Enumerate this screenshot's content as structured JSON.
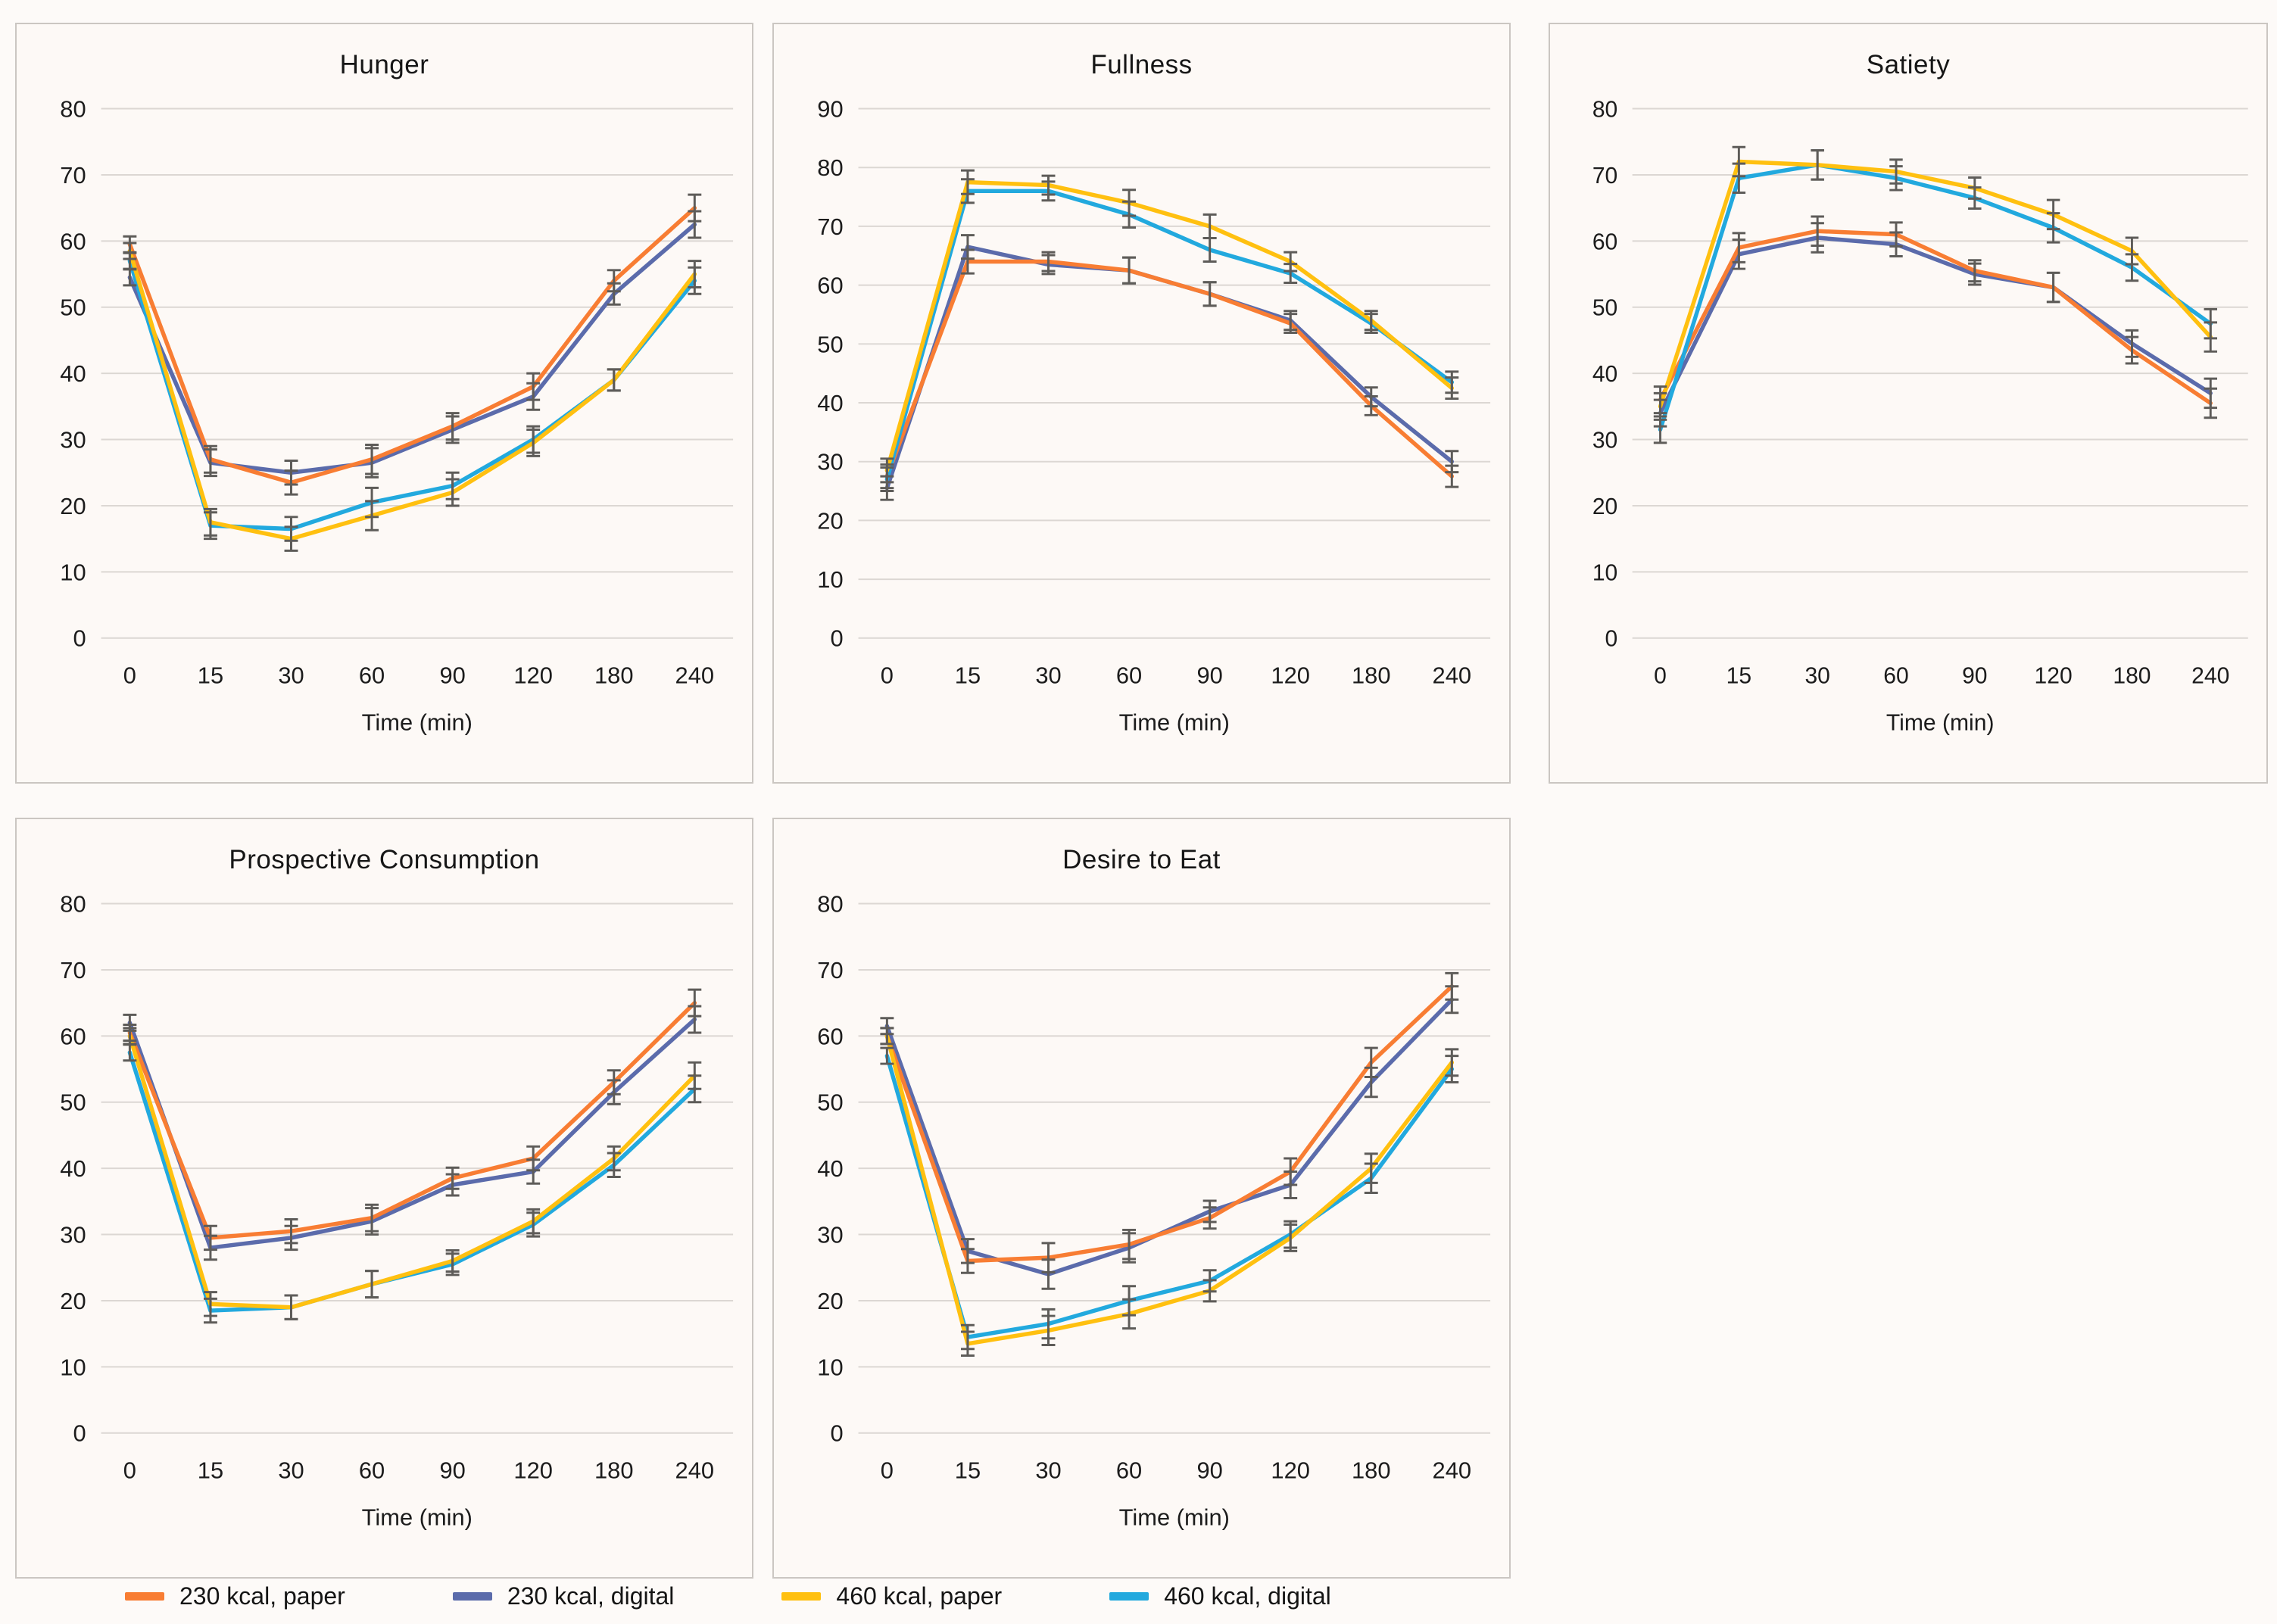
{
  "page": {
    "background": "#fdfaf8"
  },
  "colors": {
    "grid": "#dcd7d3",
    "error_bar": "#5e5c59",
    "panel_border": "#cbc6c2",
    "panel_bg": "#fdf9f6",
    "text": "#1c1c1c"
  },
  "series_colors": {
    "230 kcal, paper": "#F87D33",
    "230 kcal, digital": "#5B6BAB",
    "460 kcal, paper": "#FFC010",
    "460 kcal, digital": "#22A9DE"
  },
  "legend": {
    "position": "bottom",
    "items": [
      {
        "label": "230 kcal, paper",
        "color": "#F87D33"
      },
      {
        "label": "230 kcal, digital",
        "color": "#5B6BAB"
      },
      {
        "label": "460 kcal, paper",
        "color": "#FFC010"
      },
      {
        "label": "460 kcal, digital",
        "color": "#22A9DE"
      }
    ]
  },
  "chart_data": [
    {
      "type": "line",
      "title": "Hunger",
      "xlabel": "Time (min)",
      "ylim": [
        0,
        80
      ],
      "grid": true,
      "categories": [
        "0",
        "15",
        "30",
        "60",
        "90",
        "120",
        "180",
        "240"
      ],
      "errors": [
        1.2,
        2,
        1.8,
        2.2,
        2,
        2,
        1.6,
        2
      ],
      "series": [
        {
          "name": "230 kcal, digital",
          "values": [
            54.5,
            26.5,
            25,
            26.5,
            31.5,
            36.5,
            52,
            62.5
          ]
        },
        {
          "name": "230 kcal, paper",
          "values": [
            59.5,
            27,
            23.5,
            27,
            32,
            38,
            54,
            65
          ]
        },
        {
          "name": "460 kcal, digital",
          "values": [
            57,
            17,
            16.5,
            20.5,
            23,
            30,
            39,
            54
          ]
        },
        {
          "name": "460 kcal, paper",
          "values": [
            58.5,
            17.5,
            15,
            18.5,
            22,
            29.5,
            39,
            55
          ]
        }
      ]
    },
    {
      "type": "line",
      "title": "Fullness",
      "xlabel": "Time (min)",
      "ylim": [
        0,
        90
      ],
      "grid": true,
      "categories": [
        "0",
        "15",
        "30",
        "60",
        "90",
        "120",
        "180",
        "240"
      ],
      "errors": [
        2,
        2,
        1.6,
        2.2,
        2,
        1.6,
        1.6,
        1.8
      ],
      "series": [
        {
          "name": "230 kcal, digital",
          "values": [
            25.5,
            66.5,
            63.5,
            62.5,
            58.5,
            54,
            41,
            30
          ]
        },
        {
          "name": "230 kcal, paper",
          "values": [
            27.5,
            64,
            64,
            62.5,
            58.5,
            53.5,
            39.5,
            27.5
          ]
        },
        {
          "name": "460 kcal, digital",
          "values": [
            27,
            76,
            76,
            72,
            66,
            62,
            53.5,
            43.5
          ]
        },
        {
          "name": "460 kcal, paper",
          "values": [
            28.5,
            77.5,
            77,
            74,
            70,
            64,
            54,
            42.5
          ]
        }
      ]
    },
    {
      "type": "line",
      "title": "Satiety",
      "xlabel": "Time (min)",
      "ylim": [
        0,
        80
      ],
      "grid": true,
      "categories": [
        "0",
        "15",
        "30",
        "60",
        "90",
        "120",
        "180",
        "240"
      ],
      "errors": [
        2,
        2.2,
        2.2,
        1.8,
        1.6,
        2.2,
        2,
        2.2
      ],
      "series": [
        {
          "name": "230 kcal, digital",
          "values": [
            34,
            58,
            60.5,
            59.5,
            55,
            53,
            44.5,
            37
          ]
        },
        {
          "name": "230 kcal, paper",
          "values": [
            36,
            59,
            61.5,
            61,
            55.5,
            53,
            43.5,
            35.5
          ]
        },
        {
          "name": "460 kcal, digital",
          "values": [
            31.5,
            69.5,
            71.5,
            69.5,
            66.5,
            62,
            56,
            47.5
          ]
        },
        {
          "name": "460 kcal, paper",
          "values": [
            35,
            72,
            71.5,
            70.5,
            68,
            64,
            58.5,
            45.5
          ]
        }
      ]
    },
    {
      "type": "line",
      "title": "Prospective Consumption",
      "xlabel": "Time (min)",
      "ylim": [
        0,
        80
      ],
      "grid": true,
      "categories": [
        "0",
        "15",
        "30",
        "60",
        "90",
        "120",
        "180",
        "240"
      ],
      "errors": [
        1.2,
        1.8,
        1.8,
        2,
        1.6,
        1.8,
        1.8,
        2
      ],
      "series": [
        {
          "name": "230 kcal, digital",
          "values": [
            62,
            28,
            29.5,
            32,
            37.5,
            39.5,
            51.5,
            62.5
          ]
        },
        {
          "name": "230 kcal, paper",
          "values": [
            60.5,
            29.5,
            30.5,
            32.5,
            38.5,
            41.5,
            53,
            65
          ]
        },
        {
          "name": "460 kcal, digital",
          "values": [
            57.5,
            18.5,
            19,
            22.5,
            25.5,
            31.5,
            40.5,
            52
          ]
        },
        {
          "name": "460 kcal, paper",
          "values": [
            60,
            19.5,
            19,
            22.5,
            26,
            32,
            41.5,
            54
          ]
        }
      ]
    },
    {
      "type": "line",
      "title": "Desire to Eat",
      "xlabel": "Time (min)",
      "ylim": [
        0,
        80
      ],
      "grid": true,
      "categories": [
        "0",
        "15",
        "30",
        "60",
        "90",
        "120",
        "180",
        "240"
      ],
      "errors": [
        1.2,
        1.8,
        2.2,
        2.2,
        1.6,
        2,
        2.2,
        2
      ],
      "series": [
        {
          "name": "230 kcal, digital",
          "values": [
            61.5,
            27.5,
            24,
            28,
            33.5,
            37.5,
            53,
            65.5
          ]
        },
        {
          "name": "230 kcal, paper",
          "values": [
            60,
            26,
            26.5,
            28.5,
            32.5,
            39.5,
            56,
            67.5
          ]
        },
        {
          "name": "460 kcal, digital",
          "values": [
            57,
            14.5,
            16.5,
            20,
            23,
            30,
            38.5,
            55
          ]
        },
        {
          "name": "460 kcal, paper",
          "values": [
            60,
            13.5,
            15.5,
            18,
            21.5,
            29.5,
            40,
            56
          ]
        }
      ]
    }
  ]
}
